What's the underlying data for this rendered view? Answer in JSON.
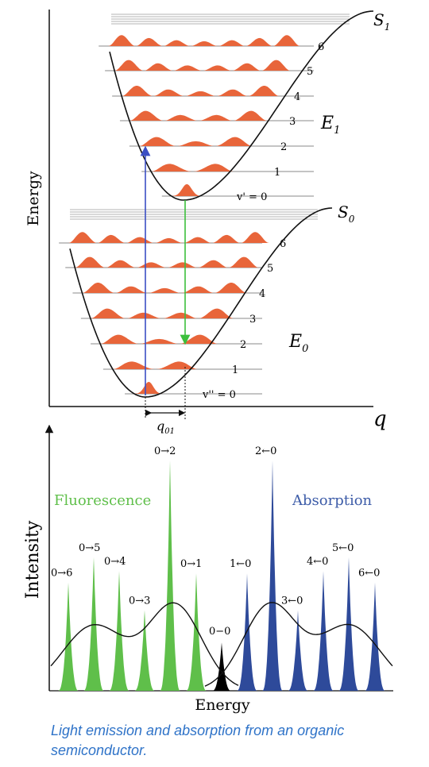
{
  "upper_diagram": {
    "axis_label": "Energy",
    "x_axis_symbol": "q",
    "displacement_label": "q",
    "displacement_subscript": "01",
    "excited_state": {
      "curve_label": "S",
      "curve_subscript": "1",
      "energy_label": "E",
      "energy_subscript": "1",
      "level_labels": [
        "v' = 0",
        "1",
        "2",
        "3",
        "4",
        "5",
        "6"
      ]
    },
    "ground_state": {
      "curve_label": "S",
      "curve_subscript": "0",
      "energy_label": "E",
      "energy_subscript": "0",
      "level_labels": [
        "v'' = 0",
        "1",
        "2",
        "3",
        "4",
        "5",
        "6"
      ]
    },
    "colors": {
      "wavefunction": "#e8653a",
      "absorption_arrow": "#3b4fc4",
      "emission_arrow": "#3cbf3c",
      "curve": "#111111",
      "level_line": "#888888"
    }
  },
  "lower_chart": {
    "xlabel": "Energy",
    "ylabel": "Intensity",
    "fluorescence_label": "Fluorescence",
    "absorption_label": "Absorption",
    "zero_zero_label": "0−0",
    "fluorescence_peaks": [
      {
        "label": "0→6",
        "intensity": 0.47
      },
      {
        "label": "0→5",
        "intensity": 0.58
      },
      {
        "label": "0→4",
        "intensity": 0.52
      },
      {
        "label": "0→3",
        "intensity": 0.35
      },
      {
        "label": "0→2",
        "intensity": 1.0
      },
      {
        "label": "0→1",
        "intensity": 0.51
      }
    ],
    "zero_zero_intensity": 0.21,
    "absorption_peaks": [
      {
        "label": "1←0",
        "intensity": 0.51
      },
      {
        "label": "2←0",
        "intensity": 1.0
      },
      {
        "label": "3←0",
        "intensity": 0.35
      },
      {
        "label": "4←0",
        "intensity": 0.52
      },
      {
        "label": "5←0",
        "intensity": 0.58
      },
      {
        "label": "6←0",
        "intensity": 0.47
      }
    ],
    "colors": {
      "fluorescence": "#5fbf4a",
      "fluorescence_label": "#5fbf4a",
      "absorption": "#2e4a9a",
      "absorption_label": "#3d5ca8",
      "zero_zero": "#000000",
      "envelope": "#111111"
    }
  },
  "caption": "Light emission and absorption from an organic semiconductor."
}
